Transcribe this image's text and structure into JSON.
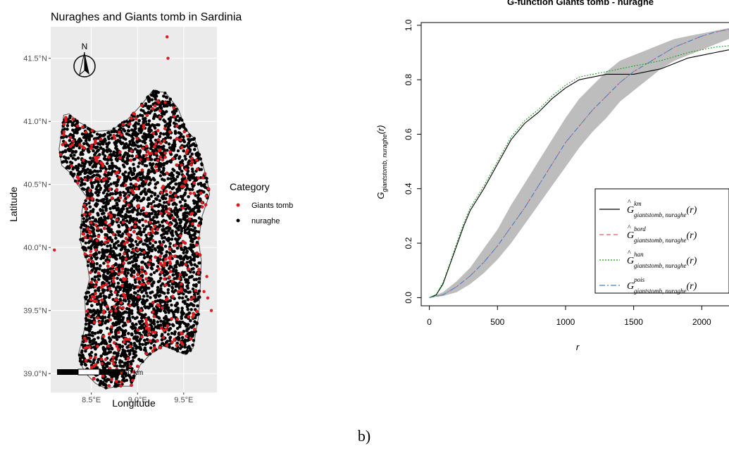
{
  "caption": "b)",
  "chart_data": [
    {
      "type": "scatter",
      "title": "Nuraghes and Giants tomb in Sardinia",
      "xlabel": "Longitude",
      "ylabel": "Latitude",
      "xlim": [
        8.06,
        9.86
      ],
      "ylim": [
        38.85,
        41.75
      ],
      "xticks": [
        8.5,
        9.0,
        9.5
      ],
      "xtick_labels": [
        "8.5°E",
        "9.0°E",
        "9.5°E"
      ],
      "yticks": [
        39.0,
        39.5,
        40.0,
        40.5,
        41.0,
        41.5
      ],
      "ytick_labels": [
        "39.0°N",
        "39.5°N",
        "40.0°N",
        "40.5°N",
        "41.0°N",
        "41.5°N"
      ],
      "grid": true,
      "legend_title": "Category",
      "legend_position": "right",
      "north_arrow_label": "N",
      "scale_bar_label": "60 km",
      "colors": {
        "panel_bg": "#ebebeb",
        "grid": "#ffffff",
        "island_fill": "#f2f2f2",
        "coast": "#4d4d4d"
      },
      "island_outline": [
        [
          8.2,
          41.05
        ],
        [
          8.26,
          41.06
        ],
        [
          8.35,
          41.0
        ],
        [
          8.55,
          40.92
        ],
        [
          8.72,
          40.93
        ],
        [
          8.9,
          41.02
        ],
        [
          9.04,
          41.13
        ],
        [
          9.16,
          41.24
        ],
        [
          9.3,
          41.23
        ],
        [
          9.44,
          41.1
        ],
        [
          9.53,
          40.93
        ],
        [
          9.62,
          40.86
        ],
        [
          9.75,
          40.55
        ],
        [
          9.78,
          40.42
        ],
        [
          9.7,
          40.25
        ],
        [
          9.66,
          40.05
        ],
        [
          9.69,
          39.9
        ],
        [
          9.68,
          39.7
        ],
        [
          9.66,
          39.45
        ],
        [
          9.6,
          39.2
        ],
        [
          9.52,
          39.15
        ],
        [
          9.35,
          39.2
        ],
        [
          9.28,
          39.22
        ],
        [
          9.15,
          39.16
        ],
        [
          9.03,
          39.07
        ],
        [
          8.93,
          38.9
        ],
        [
          8.78,
          38.9
        ],
        [
          8.66,
          38.88
        ],
        [
          8.55,
          38.92
        ],
        [
          8.44,
          39.0
        ],
        [
          8.39,
          39.07
        ],
        [
          8.36,
          39.15
        ],
        [
          8.4,
          39.27
        ],
        [
          8.44,
          39.4
        ],
        [
          8.43,
          39.6
        ],
        [
          8.48,
          39.75
        ],
        [
          8.45,
          39.9
        ],
        [
          8.38,
          40.05
        ],
        [
          8.4,
          40.3
        ],
        [
          8.45,
          40.4
        ],
        [
          8.35,
          40.5
        ],
        [
          8.26,
          40.6
        ],
        [
          8.18,
          40.65
        ],
        [
          8.15,
          40.78
        ],
        [
          8.18,
          40.92
        ],
        [
          8.2,
          41.05
        ]
      ],
      "series": [
        {
          "name": "Giants tomb",
          "color": "#e41a1c",
          "count": 460,
          "outliers": [
            [
              9.32,
              41.67
            ],
            [
              9.33,
              41.5
            ],
            [
              8.22,
              40.83
            ],
            [
              8.1,
              39.98
            ],
            [
              9.75,
              39.77
            ],
            [
              9.8,
              39.5
            ],
            [
              9.76,
              39.6
            ],
            [
              8.55,
              39.07
            ],
            [
              9.3,
              41.15
            ],
            [
              9.72,
              39.65
            ]
          ]
        },
        {
          "name": "nuraghe",
          "color": "#000000",
          "count": 6600
        }
      ]
    },
    {
      "type": "line",
      "title": "G-function Giants tomb - nuraghe",
      "xlabel": "r",
      "ylabel": "G giantstomb, nuraghe (r)",
      "xlim": [
        -60,
        2200
      ],
      "ylim": [
        -0.03,
        1.01
      ],
      "xticks": [
        0,
        500,
        1000,
        1500,
        2000
      ],
      "yticks": [
        0.0,
        0.2,
        0.4,
        0.6,
        0.8,
        1.0
      ],
      "ytick_labels": [
        "0.0",
        "0.2",
        "0.4",
        "0.6",
        "0.8",
        "1.0"
      ],
      "legend_position": "bottom-right",
      "envelope": {
        "color": "#bdbdbd",
        "x": [
          0,
          100,
          200,
          300,
          400,
          500,
          600,
          700,
          800,
          900,
          1000,
          1100,
          1200,
          1300,
          1400,
          1500,
          1600,
          1700,
          1800,
          1900,
          2000,
          2100,
          2200
        ],
        "lower": [
          0,
          0.006,
          0.02,
          0.05,
          0.09,
          0.14,
          0.2,
          0.27,
          0.34,
          0.41,
          0.48,
          0.55,
          0.61,
          0.66,
          0.72,
          0.76,
          0.8,
          0.84,
          0.87,
          0.89,
          0.91,
          0.93,
          0.95
        ],
        "upper": [
          0,
          0.02,
          0.06,
          0.11,
          0.18,
          0.25,
          0.34,
          0.42,
          0.5,
          0.58,
          0.66,
          0.73,
          0.78,
          0.83,
          0.87,
          0.89,
          0.91,
          0.93,
          0.95,
          0.96,
          0.97,
          0.98,
          0.99
        ]
      },
      "series": [
        {
          "label_sup": "km",
          "hat": true,
          "color": "#000000",
          "dash": "",
          "width": 1.1,
          "x": [
            0,
            50,
            100,
            150,
            200,
            250,
            300,
            400,
            500,
            600,
            700,
            800,
            900,
            1000,
            1100,
            1200,
            1300,
            1400,
            1500,
            1600,
            1700,
            1800,
            1900,
            2000,
            2100,
            2200
          ],
          "y": [
            0,
            0.01,
            0.05,
            0.12,
            0.19,
            0.26,
            0.32,
            0.4,
            0.49,
            0.58,
            0.64,
            0.68,
            0.73,
            0.77,
            0.8,
            0.81,
            0.82,
            0.82,
            0.82,
            0.83,
            0.84,
            0.86,
            0.88,
            0.89,
            0.9,
            0.91
          ]
        },
        {
          "label_sup": "bord",
          "hat": true,
          "color": "#e05c6e",
          "dash": "6,4",
          "width": 1.0,
          "x": [
            0,
            100,
            200,
            300,
            400,
            500,
            600,
            700,
            800,
            900,
            1000,
            1100,
            1200,
            1300,
            1400,
            1500,
            1600,
            1700,
            1800,
            1900,
            2000,
            2100,
            2200
          ],
          "y": [
            0,
            0.01,
            0.04,
            0.08,
            0.13,
            0.19,
            0.26,
            0.33,
            0.41,
            0.49,
            0.57,
            0.63,
            0.69,
            0.74,
            0.79,
            0.83,
            0.86,
            0.89,
            0.92,
            0.94,
            0.96,
            0.975,
            0.985
          ]
        },
        {
          "label_sup": "han",
          "hat": true,
          "color": "#1a9a1a",
          "dash": "2,2",
          "width": 1.0,
          "x": [
            0,
            50,
            100,
            150,
            200,
            250,
            300,
            400,
            500,
            600,
            700,
            800,
            900,
            1000,
            1100,
            1200,
            1300,
            1400,
            1500,
            1600,
            1700,
            1800,
            1900,
            2000,
            2100,
            2200
          ],
          "y": [
            0,
            0.012,
            0.055,
            0.125,
            0.2,
            0.27,
            0.33,
            0.41,
            0.5,
            0.59,
            0.65,
            0.69,
            0.74,
            0.78,
            0.81,
            0.82,
            0.83,
            0.84,
            0.85,
            0.86,
            0.87,
            0.885,
            0.9,
            0.91,
            0.92,
            0.925
          ]
        },
        {
          "label_sup": "pois",
          "hat": false,
          "color": "#3b7dd8",
          "dash": "8,3,2,3",
          "width": 1.0,
          "x": [
            0,
            100,
            200,
            300,
            400,
            500,
            600,
            700,
            800,
            900,
            1000,
            1100,
            1200,
            1300,
            1400,
            1500,
            1600,
            1700,
            1800,
            1900,
            2000,
            2100,
            2200
          ],
          "y": [
            0,
            0.01,
            0.04,
            0.08,
            0.13,
            0.19,
            0.26,
            0.33,
            0.41,
            0.49,
            0.57,
            0.63,
            0.69,
            0.74,
            0.79,
            0.83,
            0.86,
            0.89,
            0.92,
            0.94,
            0.96,
            0.975,
            0.985
          ]
        }
      ],
      "legend_sub": "giantstomb, nuraghe",
      "legend_symbol": "G",
      "legend_suffix": "(r)"
    }
  ]
}
